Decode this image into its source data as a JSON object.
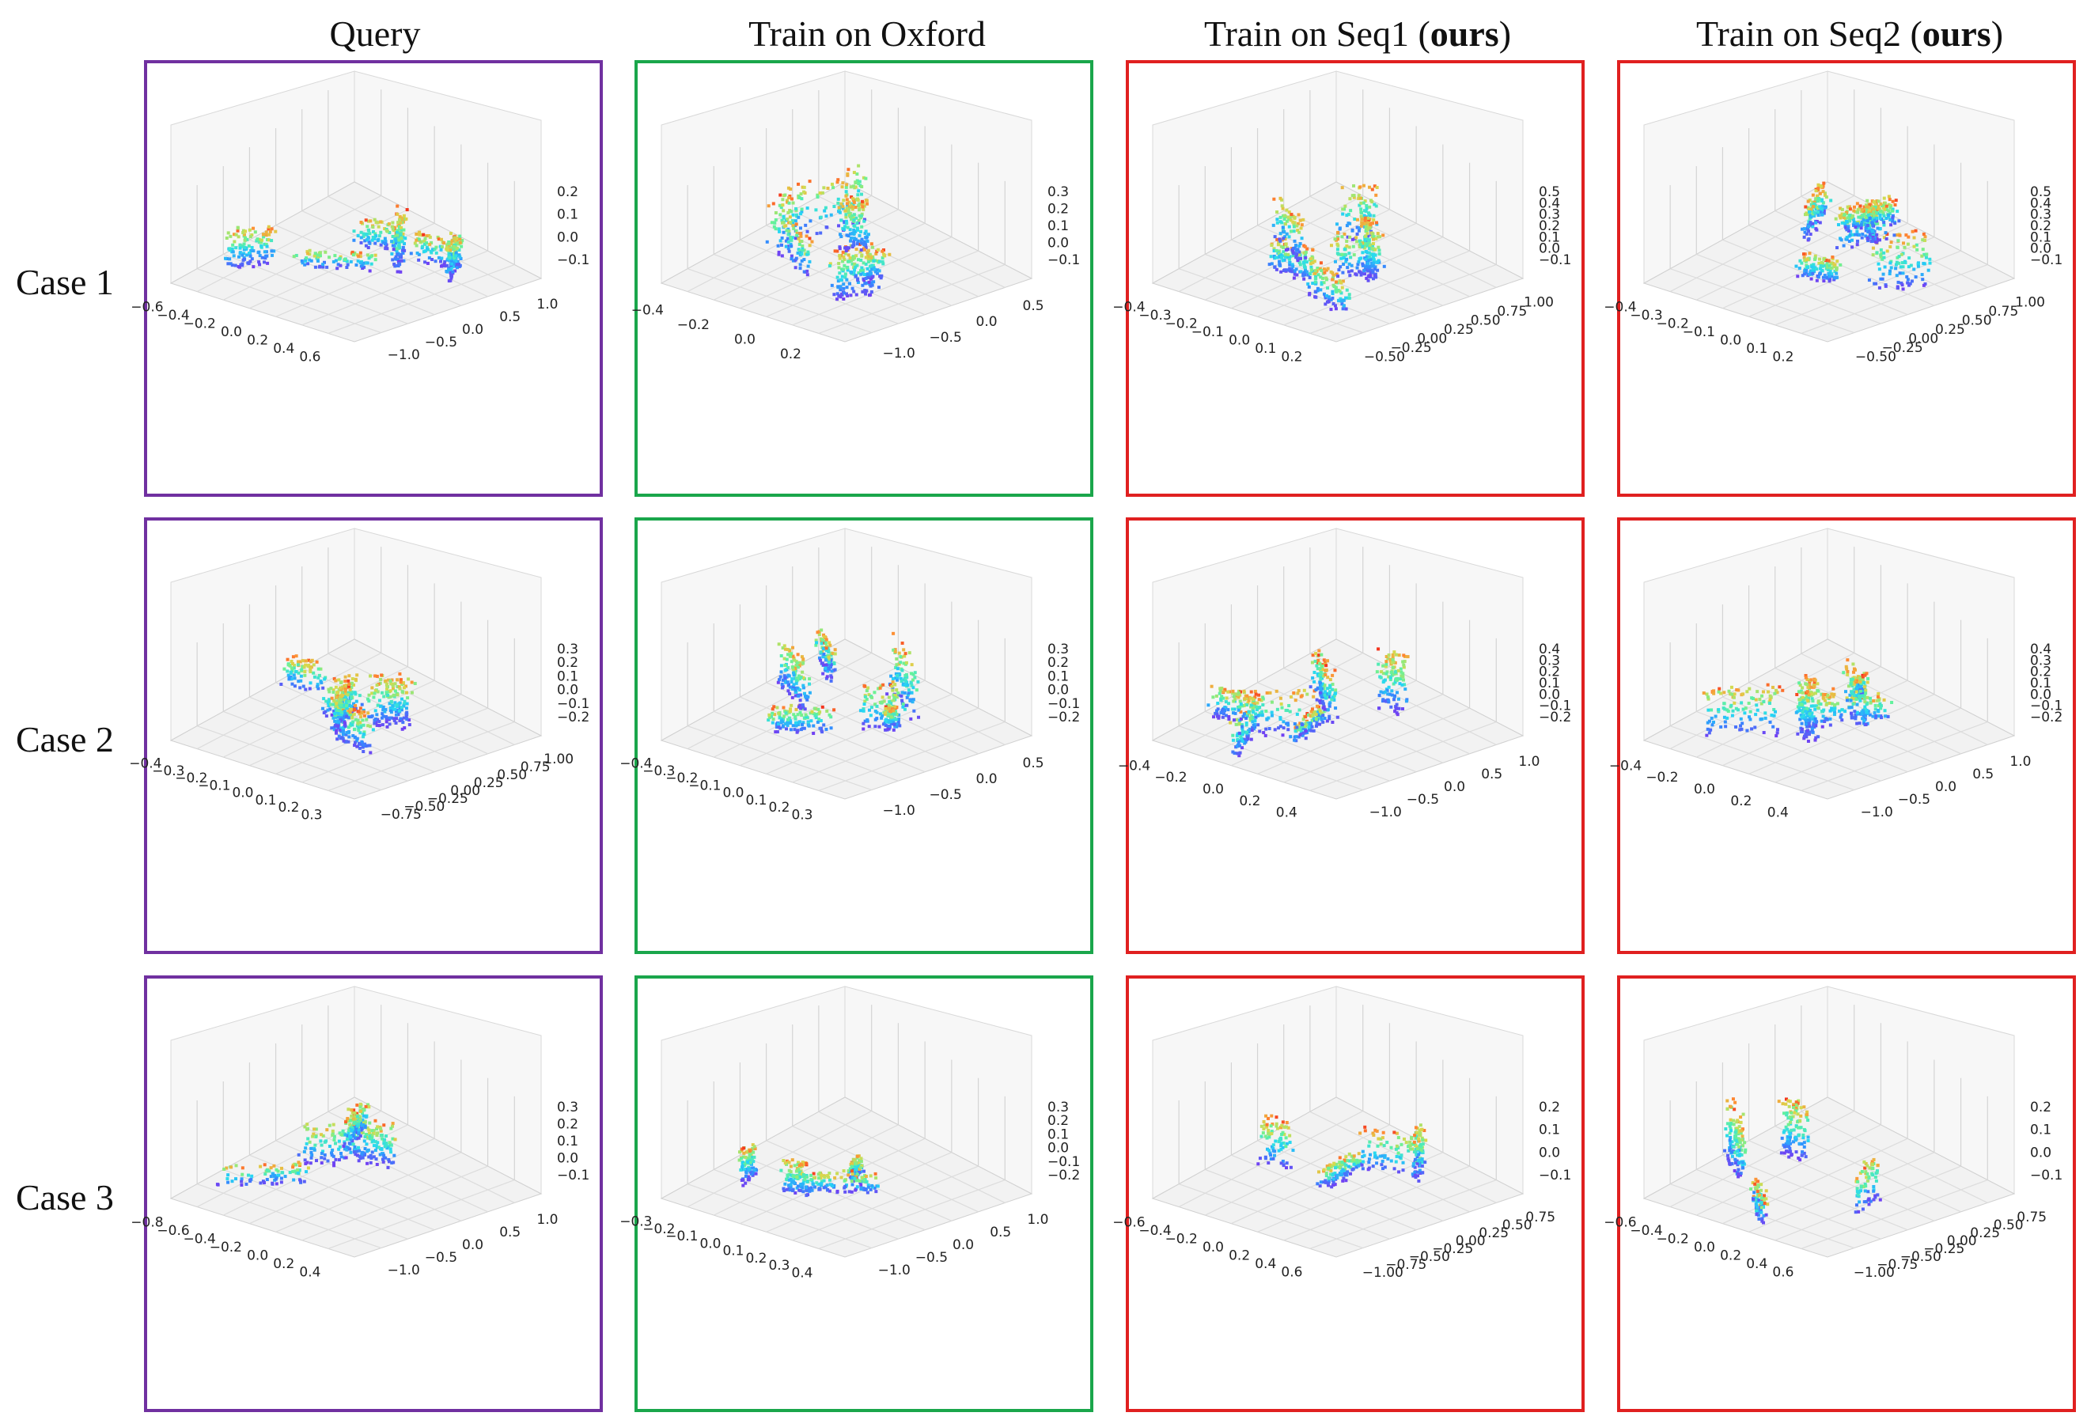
{
  "columns": [
    {
      "label": "Query",
      "bold": "",
      "suffix": "",
      "border_color": "#7030a0"
    },
    {
      "label": "Train on Oxford",
      "bold": "",
      "suffix": "",
      "border_color": "#1aa64b"
    },
    {
      "label": "Train on Seq1 (",
      "bold": "ours",
      "suffix": ")",
      "border_color": "#e02020"
    },
    {
      "label": "Train on Seq2 (",
      "bold": "ours",
      "suffix": ")",
      "border_color": "#e02020"
    }
  ],
  "rows": [
    {
      "label": "Case 1"
    },
    {
      "label": "Case 2"
    },
    {
      "label": "Case 3"
    }
  ],
  "chart_data": [
    {
      "type": "scatter3d",
      "case": "Case 1",
      "method": "Query",
      "x_ticks": [
        "−0.6",
        "−0.4",
        "−0.2",
        "0.0",
        "0.2",
        "0.4",
        "0.6"
      ],
      "y_ticks": [
        "−1.0",
        "−0.5",
        "0.0",
        "0.5",
        "1.0"
      ],
      "z_ticks": [
        "0.2",
        "0.1",
        "0.0",
        "−0.1"
      ],
      "xlim": [
        -0.6,
        0.6
      ],
      "ylim": [
        -1.0,
        1.0
      ],
      "zlim": [
        -0.1,
        0.2
      ]
    },
    {
      "type": "scatter3d",
      "case": "Case 1",
      "method": "Train on Oxford",
      "x_ticks": [
        "−0.4",
        "−0.2",
        "0.0",
        "0.2"
      ],
      "y_ticks": [
        "−1.0",
        "−0.5",
        "0.0",
        "0.5"
      ],
      "z_ticks": [
        "0.3",
        "0.2",
        "0.1",
        "0.0",
        "−0.1"
      ],
      "xlim": [
        -0.4,
        0.2
      ],
      "ylim": [
        -1.0,
        0.5
      ],
      "zlim": [
        -0.1,
        0.3
      ]
    },
    {
      "type": "scatter3d",
      "case": "Case 1",
      "method": "Train on Seq1 (ours)",
      "x_ticks": [
        "−0.4",
        "−0.3",
        "−0.2",
        "−0.1",
        "0.0",
        "0.1",
        "0.2"
      ],
      "y_ticks": [
        "−0.50",
        "−0.25",
        "0.00",
        "0.25",
        "0.50",
        "0.75",
        "1.00"
      ],
      "z_ticks": [
        "0.5",
        "0.4",
        "0.3",
        "0.2",
        "0.1",
        "0.0",
        "−0.1"
      ],
      "xlim": [
        -0.4,
        0.2
      ],
      "ylim": [
        -0.5,
        1.0
      ],
      "zlim": [
        -0.1,
        0.5
      ]
    },
    {
      "type": "scatter3d",
      "case": "Case 1",
      "method": "Train on Seq2 (ours)",
      "x_ticks": [
        "−0.4",
        "−0.3",
        "−0.2",
        "−0.1",
        "0.0",
        "0.1",
        "0.2"
      ],
      "y_ticks": [
        "−0.50",
        "−0.25",
        "0.00",
        "0.25",
        "0.50",
        "0.75",
        "1.00"
      ],
      "z_ticks": [
        "0.5",
        "0.4",
        "0.3",
        "0.2",
        "0.1",
        "0.0",
        "−0.1"
      ],
      "xlim": [
        -0.4,
        0.2
      ],
      "ylim": [
        -0.5,
        1.0
      ],
      "zlim": [
        -0.1,
        0.5
      ]
    },
    {
      "type": "scatter3d",
      "case": "Case 2",
      "method": "Query",
      "x_ticks": [
        "−0.4",
        "−0.3",
        "−0.2",
        "−0.1",
        "0.0",
        "0.1",
        "0.2",
        "0.3"
      ],
      "y_ticks": [
        "−0.75",
        "−0.50",
        "−0.25",
        "0.00",
        "0.25",
        "0.50",
        "0.75",
        "1.00"
      ],
      "z_ticks": [
        "0.3",
        "0.2",
        "0.1",
        "0.0",
        "−0.1",
        "−0.2"
      ],
      "xlim": [
        -0.4,
        0.3
      ],
      "ylim": [
        -0.75,
        1.0
      ],
      "zlim": [
        -0.2,
        0.3
      ]
    },
    {
      "type": "scatter3d",
      "case": "Case 2",
      "method": "Train on Oxford",
      "x_ticks": [
        "−0.4",
        "−0.3",
        "−0.2",
        "−0.1",
        "0.0",
        "0.1",
        "0.2",
        "0.3"
      ],
      "y_ticks": [
        "−1.0",
        "−0.5",
        "0.0",
        "0.5"
      ],
      "z_ticks": [
        "0.3",
        "0.2",
        "0.1",
        "0.0",
        "−0.1",
        "−0.2"
      ],
      "xlim": [
        -0.4,
        0.3
      ],
      "ylim": [
        -1.0,
        0.5
      ],
      "zlim": [
        -0.2,
        0.3
      ]
    },
    {
      "type": "scatter3d",
      "case": "Case 2",
      "method": "Train on Seq1 (ours)",
      "x_ticks": [
        "−0.4",
        "−0.2",
        "0.0",
        "0.2",
        "0.4"
      ],
      "y_ticks": [
        "−1.0",
        "−0.5",
        "0.0",
        "0.5",
        "1.0"
      ],
      "z_ticks": [
        "0.4",
        "0.3",
        "0.2",
        "0.1",
        "0.0",
        "−0.1",
        "−0.2"
      ],
      "xlim": [
        -0.4,
        0.4
      ],
      "ylim": [
        -1.0,
        1.0
      ],
      "zlim": [
        -0.2,
        0.4
      ]
    },
    {
      "type": "scatter3d",
      "case": "Case 2",
      "method": "Train on Seq2 (ours)",
      "x_ticks": [
        "−0.4",
        "−0.2",
        "0.0",
        "0.2",
        "0.4"
      ],
      "y_ticks": [
        "−1.0",
        "−0.5",
        "0.0",
        "0.5",
        "1.0"
      ],
      "z_ticks": [
        "0.4",
        "0.3",
        "0.2",
        "0.1",
        "0.0",
        "−0.1",
        "−0.2"
      ],
      "xlim": [
        -0.4,
        0.4
      ],
      "ylim": [
        -1.0,
        1.0
      ],
      "zlim": [
        -0.2,
        0.4
      ]
    },
    {
      "type": "scatter3d",
      "case": "Case 3",
      "method": "Query",
      "x_ticks": [
        "−0.8",
        "−0.6",
        "−0.4",
        "−0.2",
        "0.0",
        "0.2",
        "0.4"
      ],
      "y_ticks": [
        "−1.0",
        "−0.5",
        "0.0",
        "0.5",
        "1.0"
      ],
      "z_ticks": [
        "0.3",
        "0.2",
        "0.1",
        "0.0",
        "−0.1"
      ],
      "xlim": [
        -0.8,
        0.4
      ],
      "ylim": [
        -1.0,
        1.0
      ],
      "zlim": [
        -0.1,
        0.3
      ]
    },
    {
      "type": "scatter3d",
      "case": "Case 3",
      "method": "Train on Oxford",
      "x_ticks": [
        "−0.3",
        "−0.2",
        "−0.1",
        "0.0",
        "0.1",
        "0.2",
        "0.3",
        "0.4"
      ],
      "y_ticks": [
        "−1.0",
        "−0.5",
        "0.0",
        "0.5",
        "1.0"
      ],
      "z_ticks": [
        "0.3",
        "0.2",
        "0.1",
        "0.0",
        "−0.1",
        "−0.2"
      ],
      "xlim": [
        -0.3,
        0.4
      ],
      "ylim": [
        -1.0,
        1.0
      ],
      "zlim": [
        -0.2,
        0.3
      ]
    },
    {
      "type": "scatter3d",
      "case": "Case 3",
      "method": "Train on Seq1 (ours)",
      "x_ticks": [
        "−0.6",
        "−0.4",
        "−0.2",
        "0.0",
        "0.2",
        "0.4",
        "0.6"
      ],
      "y_ticks": [
        "−1.00",
        "−0.75",
        "−0.50",
        "−0.25",
        "0.00",
        "0.25",
        "0.50",
        "0.75"
      ],
      "z_ticks": [
        "0.2",
        "0.1",
        "0.0",
        "−0.1"
      ],
      "xlim": [
        -0.6,
        0.6
      ],
      "ylim": [
        -1.0,
        0.75
      ],
      "zlim": [
        -0.1,
        0.2
      ]
    },
    {
      "type": "scatter3d",
      "case": "Case 3",
      "method": "Train on Seq2 (ours)",
      "x_ticks": [
        "−0.6",
        "−0.4",
        "−0.2",
        "0.0",
        "0.2",
        "0.4",
        "0.6"
      ],
      "y_ticks": [
        "−1.00",
        "−0.75",
        "−0.50",
        "−0.25",
        "0.00",
        "0.25",
        "0.50",
        "0.75"
      ],
      "z_ticks": [
        "0.2",
        "0.1",
        "0.0",
        "−0.1"
      ],
      "xlim": [
        -0.6,
        0.6
      ],
      "ylim": [
        -1.0,
        0.75
      ],
      "zlim": [
        -0.1,
        0.2
      ]
    }
  ]
}
